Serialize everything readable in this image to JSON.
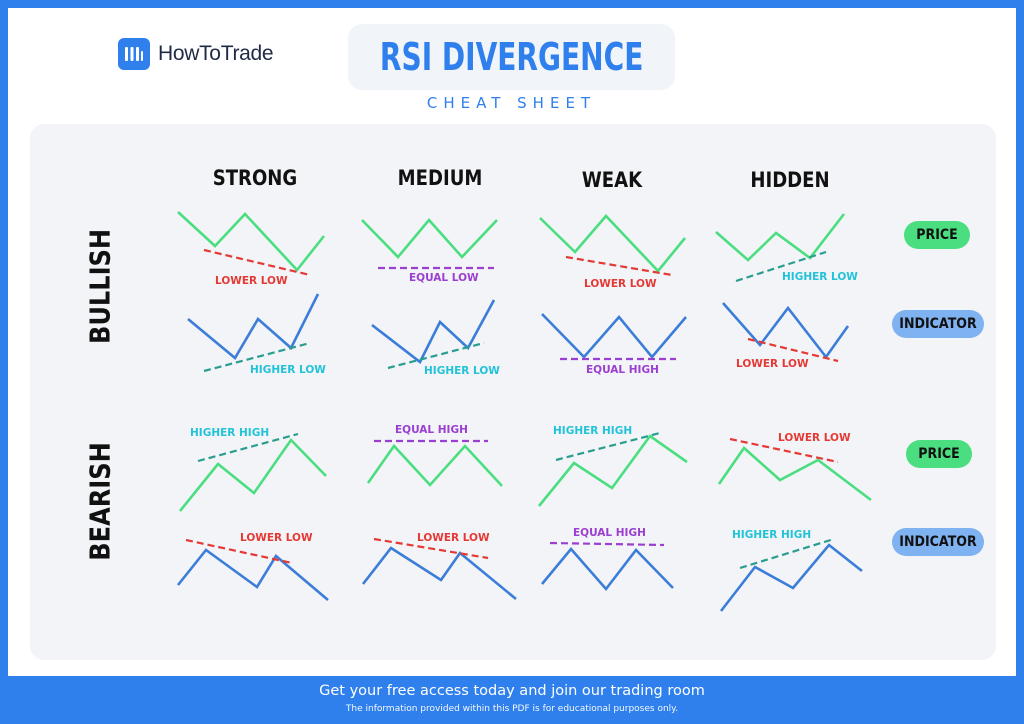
{
  "brand": {
    "name": "HowToTrade"
  },
  "header": {
    "title": "RSI DIVERGENCE",
    "subtitle": "CHEAT SHEET"
  },
  "columns": [
    "STRONG",
    "MEDIUM",
    "WEAK",
    "HIDDEN"
  ],
  "rows": [
    "BULLISH",
    "BEARISH"
  ],
  "badges": {
    "price": "PRICE",
    "indicator": "INDICATOR"
  },
  "colors": {
    "brand_blue": "#2f80ed",
    "price_line": "#4ade80",
    "indicator_line": "#3b7dd8",
    "red_dash": "#e53935",
    "teal_dash": "#2a9d8f",
    "purple_dash": "#9b3fd1",
    "cyan_label": "#22c3d8"
  },
  "cell_labels": {
    "bullish_price": [
      "LOWER LOW",
      "EQUAL LOW",
      "LOWER LOW",
      "HIGHER LOW"
    ],
    "bullish_indicator": [
      "HIGHER LOW",
      "HIGHER LOW",
      "EQUAL HIGH",
      "LOWER LOW"
    ],
    "bearish_price": [
      "HIGHER HIGH",
      "EQUAL HIGH",
      "HIGHER HIGH",
      "LOWER LOW"
    ],
    "bearish_indicator": [
      "LOWER LOW",
      "LOWER LOW",
      "EQUAL HIGH",
      "HIGHER HIGH"
    ]
  },
  "footer": {
    "cta": "Get your free access today and join our trading room",
    "disclaimer": "The information provided within this PDF is for educational purposes only."
  }
}
